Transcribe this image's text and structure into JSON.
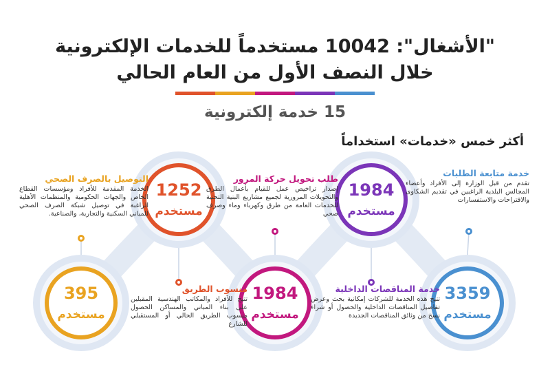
{
  "header": {
    "title_line1": "\"الأشغال\": 10042 مستخدماً للخدمات الإلكترونية",
    "title_line2": "خلال النصف الأول من العام الحالي",
    "subtitle": "15 خدمة إلكترونية",
    "section": "أكثر خمس «خدمات» استخداماً"
  },
  "services": [
    {
      "name": "خدمة متابعة الطلبات",
      "description": "تقدم من قبل الوزارة إلى الأفراد وأعضاء المجالس البلدية الراغبين في تقديم الشكاوى والاقتراحات والاستفسارات",
      "count": 3359,
      "unit": "مستخدم",
      "color": "#4a90d0"
    },
    {
      "name": "خدمة المناقصات الداخلية",
      "description": "تتيح هذه الخدمة للشركات إمكانية بحث وعرض تفاصيل المناقصات الداخلية والحصول أو شراء نسخ من وثائق المناقصات الجديدة",
      "count": 1984,
      "unit": "مستخدم",
      "color": "#7b35b8"
    },
    {
      "name": "طلب تحويل حركة المرور",
      "description": "إصدار تراخيص عمل للقيام بأعمال الطرق والتحويلات المرورية لجميع مشاريع البنية التحتية للخدمات العامة من طرق وكهرباء وماء وصرف صحي",
      "count": 1984,
      "unit": "مستخدم",
      "color": "#c2187e"
    },
    {
      "name": "منسوب الطريق",
      "description": "تتيح للأفراد والمكاتب الهندسية المقبلين على بناء المباني والمساكن الحصول منسوب الطريق الحالي أو المستقبلي للشارع",
      "count": 1252,
      "unit": "مستخدم",
      "color": "#e0532b"
    },
    {
      "name": "التوصيل بالصرف الصحي",
      "description": "الخدمة المقدمة للأفراد ومؤسسات القطاع الخاص والجهات الحكومية والمنظمات الأهلية الراغبة في توصيل شبكة الصرف الصحي للمباني السكنية والتجارية، والصناعية.",
      "count": 395,
      "unit": "مستخدم",
      "color": "#e9a321"
    }
  ]
}
